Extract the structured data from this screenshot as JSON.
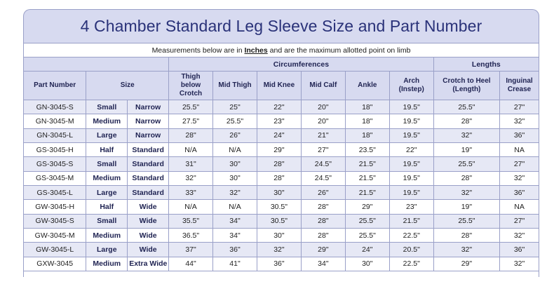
{
  "title": "4 Chamber Standard Leg Sleeve Size and Part Number",
  "note": {
    "before": "Measurements below are in ",
    "emph": "Inches",
    "after": " and are the maximum allotted point on limb"
  },
  "groups": {
    "circumferences": "Circumferences",
    "lengths": "Lengths"
  },
  "columns": {
    "part_number": "Part Number",
    "size": "Size",
    "thigh_below_crotch": "Thigh below Crotch",
    "mid_thigh": "Mid Thigh",
    "mid_knee": "Mid Knee",
    "mid_calf": "Mid Calf",
    "ankle": "Ankle",
    "arch": "Arch (Instep)",
    "crotch_to_heel": "Crotch to Heel (Length)",
    "inguinal_crease": "Inguinal Crease"
  },
  "rows": [
    {
      "part": "GN-3045-S",
      "size": "Small",
      "width": "Narrow",
      "thigh": "25.5\"",
      "midthigh": "25\"",
      "knee": "22\"",
      "calf": "20\"",
      "ankle": "18\"",
      "arch": "19.5\"",
      "c2h": "25.5\"",
      "ing": "27\""
    },
    {
      "part": "GN-3045-M",
      "size": "Medium",
      "width": "Narrow",
      "thigh": "27.5\"",
      "midthigh": "25.5\"",
      "knee": "23\"",
      "calf": "20\"",
      "ankle": "18\"",
      "arch": "19.5\"",
      "c2h": "28\"",
      "ing": "32\""
    },
    {
      "part": "GN-3045-L",
      "size": "Large",
      "width": "Narrow",
      "thigh": "28\"",
      "midthigh": "26\"",
      "knee": "24\"",
      "calf": "21\"",
      "ankle": "18\"",
      "arch": "19.5\"",
      "c2h": "32\"",
      "ing": "36\""
    },
    {
      "part": "GS-3045-H",
      "size": "Half",
      "width": "Standard",
      "thigh": "N/A",
      "midthigh": "N/A",
      "knee": "29\"",
      "calf": "27\"",
      "ankle": "23.5\"",
      "arch": "22\"",
      "c2h": "19\"",
      "ing": "NA"
    },
    {
      "part": "GS-3045-S",
      "size": "Small",
      "width": "Standard",
      "thigh": "31\"",
      "midthigh": "30\"",
      "knee": "28\"",
      "calf": "24.5\"",
      "ankle": "21.5\"",
      "arch": "19.5\"",
      "c2h": "25.5\"",
      "ing": "27\""
    },
    {
      "part": "GS-3045-M",
      "size": "Medium",
      "width": "Standard",
      "thigh": "32\"",
      "midthigh": "30\"",
      "knee": "28\"",
      "calf": "24.5\"",
      "ankle": "21.5\"",
      "arch": "19.5\"",
      "c2h": "28\"",
      "ing": "32\""
    },
    {
      "part": "GS-3045-L",
      "size": "Large",
      "width": "Standard",
      "thigh": "33\"",
      "midthigh": "32\"",
      "knee": "30\"",
      "calf": "26\"",
      "ankle": "21.5\"",
      "arch": "19.5\"",
      "c2h": "32\"",
      "ing": "36\""
    },
    {
      "part": "GW-3045-H",
      "size": "Half",
      "width": "Wide",
      "thigh": "N/A",
      "midthigh": "N/A",
      "knee": "30.5\"",
      "calf": "28\"",
      "ankle": "29\"",
      "arch": "23\"",
      "c2h": "19\"",
      "ing": "NA"
    },
    {
      "part": "GW-3045-S",
      "size": "Small",
      "width": "Wide",
      "thigh": "35.5\"",
      "midthigh": "34\"",
      "knee": "30.5\"",
      "calf": "28\"",
      "ankle": "25.5\"",
      "arch": "21.5\"",
      "c2h": "25.5\"",
      "ing": "27\""
    },
    {
      "part": "GW-3045-M",
      "size": "Medium",
      "width": "Wide",
      "thigh": "36.5\"",
      "midthigh": "34\"",
      "knee": "30\"",
      "calf": "28\"",
      "ankle": "25.5\"",
      "arch": "22.5\"",
      "c2h": "28\"",
      "ing": "32\""
    },
    {
      "part": "GW-3045-L",
      "size": "Large",
      "width": "Wide",
      "thigh": "37\"",
      "midthigh": "36\"",
      "knee": "32\"",
      "calf": "29\"",
      "ankle": "24\"",
      "arch": "20.5\"",
      "c2h": "32\"",
      "ing": "36\""
    },
    {
      "part": "GXW-3045",
      "size": "Medium",
      "width": "Extra Wide",
      "thigh": "44\"",
      "midthigh": "41\"",
      "knee": "36\"",
      "calf": "34\"",
      "ankle": "30\"",
      "arch": "22.5\"",
      "c2h": "29\"",
      "ing": "32\""
    }
  ]
}
